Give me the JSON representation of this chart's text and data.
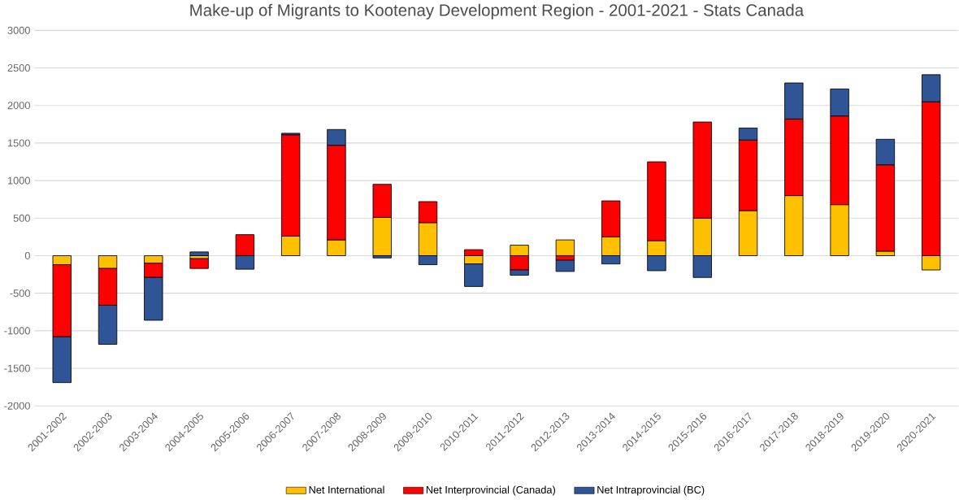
{
  "chart_data": {
    "type": "bar",
    "stacked": true,
    "title": "Make-up of Migrants to Kootenay Development Region - 2001-2021 - Stats Canada",
    "categories": [
      "2001-2002",
      "2002-2003",
      "2003-2004",
      "2004-2005",
      "2005-2006",
      "2006-2007",
      "2007-2008",
      "2008-2009",
      "2009-2010",
      "2010-2011",
      "2011-2012",
      "2012-2013",
      "2013-2014",
      "2014-2015",
      "2015-2016",
      "2016-2017",
      "2017-2018",
      "2018-2019",
      "2019-2020",
      "2020-2021"
    ],
    "series": [
      {
        "name": "Net International",
        "color": "#ffc000",
        "values": [
          -120,
          -170,
          -100,
          -40,
          0,
          260,
          210,
          510,
          440,
          -110,
          140,
          210,
          250,
          200,
          500,
          600,
          800,
          680,
          60,
          -190
        ]
      },
      {
        "name": "Net Interprovincial (Canada)",
        "color": "#ff0000",
        "values": [
          -960,
          -490,
          -190,
          -130,
          280,
          1350,
          1260,
          440,
          280,
          80,
          -190,
          -60,
          480,
          1050,
          1280,
          940,
          1020,
          1180,
          1150,
          2050
        ]
      },
      {
        "name": "Net Intraprovincial (BC)",
        "color": "#2f5597",
        "values": [
          -610,
          -520,
          -570,
          50,
          -180,
          20,
          210,
          -30,
          -120,
          -300,
          -70,
          -150,
          -110,
          -200,
          -290,
          160,
          480,
          360,
          340,
          360
        ]
      }
    ],
    "ylim": [
      -2000,
      3000
    ],
    "yticks": [
      -2000,
      -1500,
      -1000,
      -500,
      0,
      500,
      1000,
      1500,
      2000,
      2500,
      3000
    ],
    "grid": "y",
    "legend": "bottom"
  }
}
